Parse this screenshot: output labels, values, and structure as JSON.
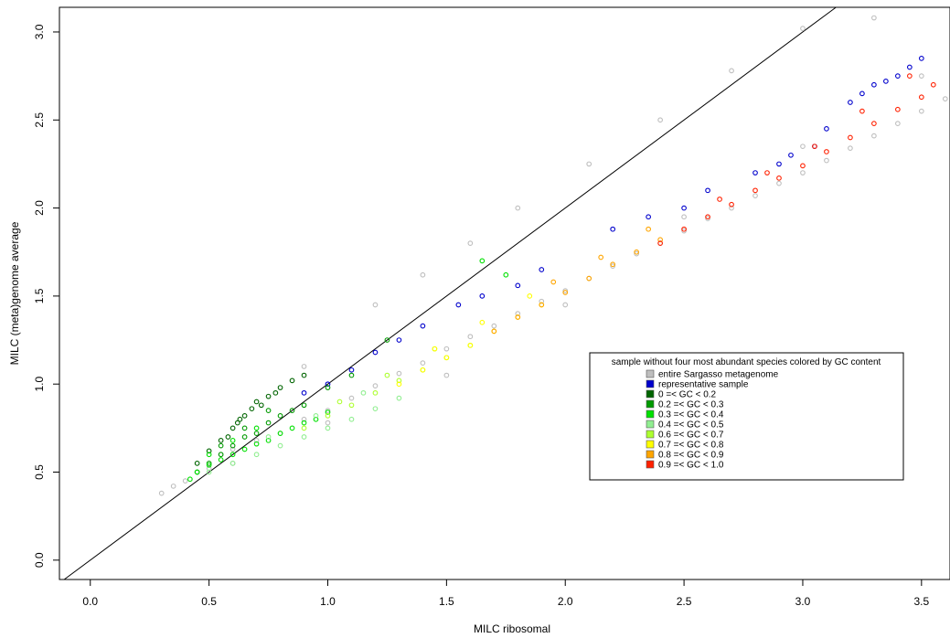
{
  "chart_data": {
    "type": "scatter",
    "xlabel": "MILC ribosomal",
    "ylabel": "MILC (meta)genome average",
    "xlim": [
      -0.13,
      3.62
    ],
    "ylim": [
      -0.11,
      3.14
    ],
    "x_ticks": [
      "0.0",
      "0.5",
      "1.0",
      "1.5",
      "2.0",
      "2.5",
      "3.0",
      "3.5"
    ],
    "y_ticks": [
      "0.0",
      "0.5",
      "1.0",
      "1.5",
      "2.0",
      "2.5",
      "3.0"
    ],
    "reference_line": {
      "intercept": 0,
      "slope": 1
    },
    "grid": false,
    "marker": "open-circle",
    "legend": {
      "title": "sample without four most abundant species colored by GC content",
      "position": "right",
      "entries": [
        {
          "label": "entire Sargasso metagenome",
          "color": "#bebebe"
        },
        {
          "label": "representative sample",
          "color": "#0000cc"
        },
        {
          "label": "0 =< GC < 0.2",
          "color": "#006400"
        },
        {
          "label": "0.2 =< GC < 0.3",
          "color": "#009a00"
        },
        {
          "label": "0.3 =< GC < 0.4",
          "color": "#00e000"
        },
        {
          "label": "0.4 =< GC < 0.5",
          "color": "#90ee90"
        },
        {
          "label": "0.6 =< GC < 0.7",
          "color": "#adff2f"
        },
        {
          "label": "0.7 =< GC < 0.8",
          "color": "#ffff00"
        },
        {
          "label": "0.8 =< GC < 0.9",
          "color": "#ffa500"
        },
        {
          "label": "0.9 =< GC < 1.0",
          "color": "#ff2000"
        }
      ]
    },
    "series": [
      {
        "name": "entire Sargasso metagenome",
        "color": "#bebebe",
        "x": [
          0.3,
          0.35,
          0.4,
          0.45,
          0.5,
          0.55,
          0.6,
          0.7,
          0.8,
          0.9,
          1.0,
          1.1,
          1.2,
          1.3,
          1.4,
          1.5,
          1.6,
          1.7,
          1.8,
          1.9,
          2.0,
          2.1,
          2.2,
          2.3,
          2.4,
          2.5,
          2.6,
          2.7,
          2.8,
          2.9,
          3.0,
          3.1,
          3.2,
          3.3,
          3.4,
          3.5,
          3.6,
          0.9,
          1.2,
          1.4,
          1.6,
          1.8,
          2.1,
          2.4,
          2.7,
          3.0,
          3.3,
          0.6,
          1.0,
          1.5,
          2.0,
          2.5,
          3.0,
          3.5
        ],
        "y": [
          0.38,
          0.42,
          0.45,
          0.5,
          0.52,
          0.6,
          0.63,
          0.68,
          0.72,
          0.8,
          0.85,
          0.92,
          0.99,
          1.06,
          1.12,
          1.2,
          1.27,
          1.33,
          1.4,
          1.47,
          1.53,
          1.6,
          1.67,
          1.74,
          1.8,
          1.87,
          1.94,
          2.0,
          2.07,
          2.14,
          2.2,
          2.27,
          2.34,
          2.41,
          2.48,
          2.55,
          2.62,
          1.1,
          1.45,
          1.62,
          1.8,
          2.0,
          2.25,
          2.5,
          2.78,
          3.02,
          3.08,
          0.55,
          0.78,
          1.05,
          1.45,
          1.95,
          2.35,
          2.75
        ]
      },
      {
        "name": "representative sample",
        "color": "#0000cc",
        "x": [
          0.9,
          1.0,
          1.1,
          1.2,
          1.3,
          1.4,
          1.55,
          1.65,
          1.8,
          1.9,
          2.2,
          2.35,
          2.5,
          2.6,
          2.8,
          2.9,
          3.05,
          3.2,
          3.25,
          3.3,
          3.35,
          3.4,
          3.45,
          3.5,
          3.1,
          2.95
        ],
        "y": [
          0.95,
          1.0,
          1.08,
          1.18,
          1.25,
          1.33,
          1.45,
          1.5,
          1.56,
          1.65,
          1.88,
          1.95,
          2.0,
          2.1,
          2.2,
          2.25,
          2.35,
          2.6,
          2.65,
          2.7,
          2.72,
          2.75,
          2.8,
          2.85,
          2.45,
          2.3
        ]
      },
      {
        "name": "0 =< GC < 0.2",
        "color": "#006400",
        "x": [
          0.45,
          0.5,
          0.55,
          0.6,
          0.62,
          0.65,
          0.68,
          0.7,
          0.72,
          0.75,
          0.78,
          0.8,
          0.85,
          0.9,
          0.58,
          0.63
        ],
        "y": [
          0.55,
          0.62,
          0.68,
          0.75,
          0.78,
          0.82,
          0.86,
          0.9,
          0.88,
          0.93,
          0.95,
          0.98,
          1.02,
          1.05,
          0.7,
          0.8
        ]
      },
      {
        "name": "0.2 =< GC < 0.3",
        "color": "#009a00",
        "x": [
          0.45,
          0.5,
          0.55,
          0.6,
          0.65,
          0.7,
          0.75,
          0.8,
          0.85,
          0.9,
          0.55,
          0.65,
          0.75,
          1.0,
          1.1,
          1.25
        ],
        "y": [
          0.5,
          0.55,
          0.6,
          0.65,
          0.7,
          0.72,
          0.78,
          0.82,
          0.85,
          0.88,
          0.65,
          0.75,
          0.85,
          0.98,
          1.05,
          1.25
        ]
      },
      {
        "name": "0.3 =< GC < 0.4",
        "color": "#00e000",
        "x": [
          0.42,
          0.45,
          0.5,
          0.55,
          0.6,
          0.65,
          0.7,
          0.75,
          0.8,
          0.85,
          0.9,
          0.95,
          1.0,
          0.5,
          0.6,
          0.7,
          1.65,
          1.75
        ],
        "y": [
          0.46,
          0.5,
          0.54,
          0.57,
          0.6,
          0.63,
          0.66,
          0.68,
          0.72,
          0.75,
          0.78,
          0.8,
          0.84,
          0.6,
          0.68,
          0.75,
          1.7,
          1.62
        ]
      },
      {
        "name": "0.4 =< GC < 0.5",
        "color": "#90ee90",
        "x": [
          0.5,
          0.6,
          0.7,
          0.8,
          0.9,
          1.0,
          1.1,
          1.2,
          1.3,
          0.75,
          0.95,
          1.15
        ],
        "y": [
          0.5,
          0.55,
          0.6,
          0.65,
          0.7,
          0.75,
          0.8,
          0.86,
          0.92,
          0.7,
          0.82,
          0.95
        ]
      },
      {
        "name": "0.6 =< GC < 0.7",
        "color": "#adff2f",
        "x": [
          0.9,
          1.0,
          1.1,
          1.2,
          1.3,
          1.4,
          1.5,
          1.6,
          1.05,
          1.25,
          1.45
        ],
        "y": [
          0.75,
          0.82,
          0.88,
          0.95,
          1.02,
          1.08,
          1.15,
          1.22,
          0.9,
          1.05,
          1.2
        ]
      },
      {
        "name": "0.7 =< GC < 0.8",
        "color": "#ffff00",
        "x": [
          1.3,
          1.4,
          1.5,
          1.6,
          1.7,
          1.8,
          1.9,
          1.45,
          1.65,
          1.85
        ],
        "y": [
          1.0,
          1.08,
          1.15,
          1.22,
          1.3,
          1.38,
          1.45,
          1.2,
          1.35,
          1.5
        ]
      },
      {
        "name": "0.8 =< GC < 0.9",
        "color": "#ffa500",
        "x": [
          1.7,
          1.8,
          1.9,
          2.0,
          2.1,
          2.2,
          2.3,
          2.4,
          1.95,
          2.15,
          2.35
        ],
        "y": [
          1.3,
          1.38,
          1.45,
          1.52,
          1.6,
          1.68,
          1.75,
          1.82,
          1.58,
          1.72,
          1.88
        ]
      },
      {
        "name": "0.9 =< GC < 1.0",
        "color": "#ff2000",
        "x": [
          2.4,
          2.5,
          2.6,
          2.7,
          2.8,
          2.9,
          3.0,
          3.1,
          3.2,
          3.3,
          3.4,
          3.5,
          3.55,
          2.65,
          2.85,
          3.05,
          3.25,
          3.45
        ],
        "y": [
          1.8,
          1.88,
          1.95,
          2.02,
          2.1,
          2.17,
          2.24,
          2.32,
          2.4,
          2.48,
          2.56,
          2.63,
          2.7,
          2.05,
          2.2,
          2.35,
          2.55,
          2.75
        ]
      }
    ]
  }
}
